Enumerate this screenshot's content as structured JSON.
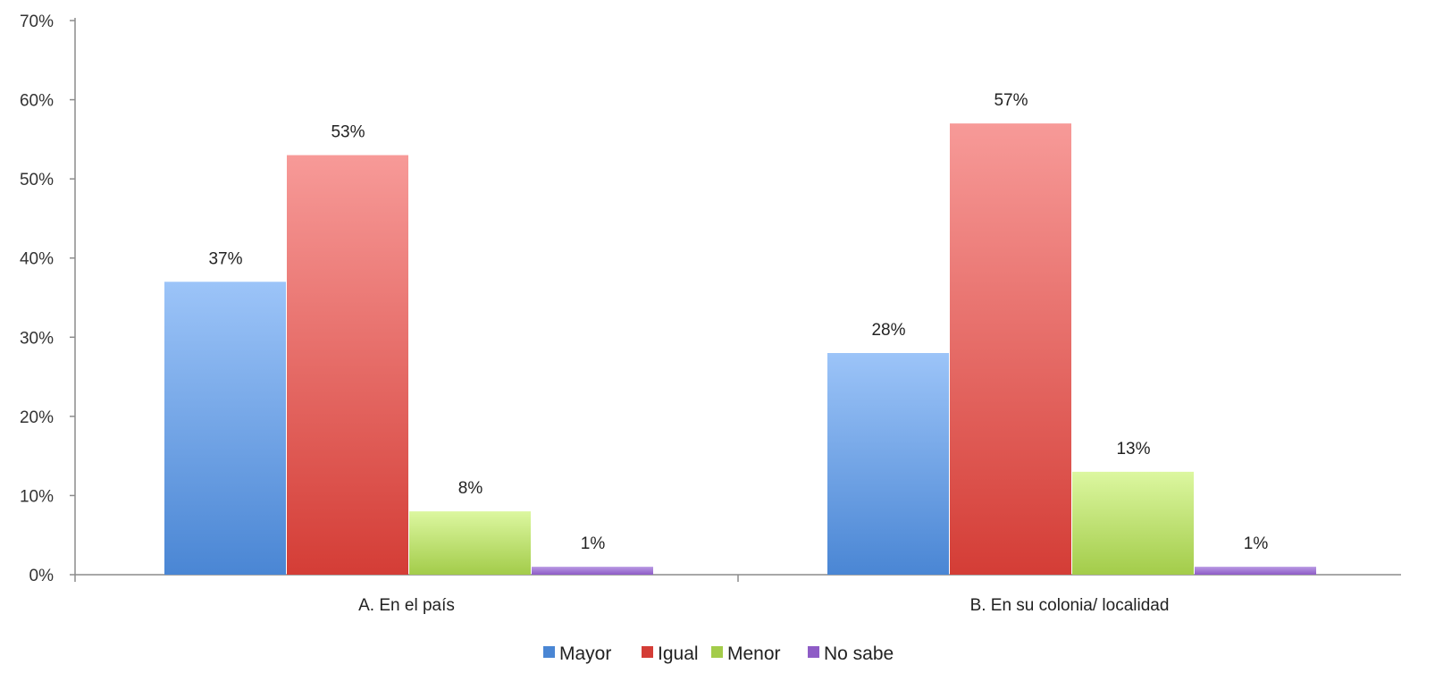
{
  "chart_data": {
    "type": "bar",
    "title": "",
    "xlabel": "",
    "ylabel": "",
    "categories": [
      "A. En el país",
      "B. En su colonia/ localidad"
    ],
    "series": [
      {
        "name": "Mayor",
        "values": [
          37,
          28
        ],
        "labels": [
          "37%",
          "28%"
        ],
        "color": "#4a86d4",
        "color_light": "#9cc4f8"
      },
      {
        "name": "Igual",
        "values": [
          53,
          57
        ],
        "labels": [
          "53%",
          "57%"
        ],
        "color": "#d43d36",
        "color_light": "#f79a98"
      },
      {
        "name": "Menor",
        "values": [
          8,
          13
        ],
        "labels": [
          "8%",
          "13%"
        ],
        "color": "#a3cc4a",
        "color_light": "#dcf7a0"
      },
      {
        "name": "No sabe",
        "values": [
          1,
          1
        ],
        "labels": [
          "1%",
          "1%"
        ],
        "color": "#8e5cc6",
        "color_light": "#b898e3"
      }
    ],
    "ylim": [
      0,
      70
    ],
    "y_ticks": [
      {
        "value": 0,
        "label": "0%"
      },
      {
        "value": 10,
        "label": "10%"
      },
      {
        "value": 20,
        "label": "20%"
      },
      {
        "value": 30,
        "label": "30%"
      },
      {
        "value": 40,
        "label": "40%"
      },
      {
        "value": 50,
        "label": "50%"
      },
      {
        "value": 60,
        "label": "60%"
      },
      {
        "value": 70,
        "label": "70%"
      }
    ],
    "grid": false,
    "legend": "bottom"
  }
}
